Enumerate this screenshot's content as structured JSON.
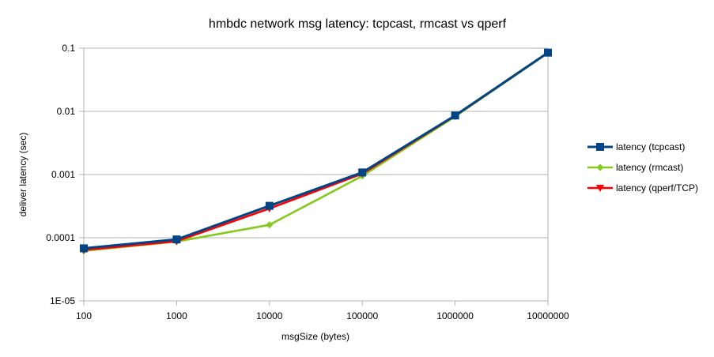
{
  "chart_data": {
    "type": "line",
    "title": "hmbdc network msg latency: tcpcast, rmcast vs qperf",
    "xlabel": "msgSize (bytes)",
    "ylabel": "deliver latency (sec)",
    "x_scale": "log",
    "y_scale": "log",
    "x": [
      100,
      1000,
      10000,
      100000,
      1000000,
      10000000
    ],
    "x_tick_labels": [
      "100",
      "1000",
      "10000",
      "100000",
      "1000000",
      "10000000"
    ],
    "ylim": [
      1e-05,
      0.1
    ],
    "y_ticks": [
      1e-05,
      0.0001,
      0.001,
      0.01,
      0.1
    ],
    "y_tick_labels": [
      "1E-05",
      "0.0001",
      "0.001",
      "0.01",
      "0.1"
    ],
    "grid": "horizontal",
    "legend_position": "right",
    "series": [
      {
        "name": "latency (tcpcast)",
        "color": "#004586",
        "marker": "square",
        "values": [
          6.8e-05,
          9.4e-05,
          0.00032,
          0.00108,
          0.0086,
          0.085
        ]
      },
      {
        "name": "latency (rmcast)",
        "color": "#83ca1a",
        "marker": "diamond",
        "values": [
          6.2e-05,
          8.7e-05,
          0.00016,
          0.00095,
          0.0083,
          0.084
        ]
      },
      {
        "name": "latency (qperf/TCP)",
        "color": "#ff0000",
        "marker": "triangle-down",
        "values": [
          6.4e-05,
          8.8e-05,
          0.00029,
          0.00103,
          0.0085,
          0.0845
        ]
      }
    ]
  }
}
